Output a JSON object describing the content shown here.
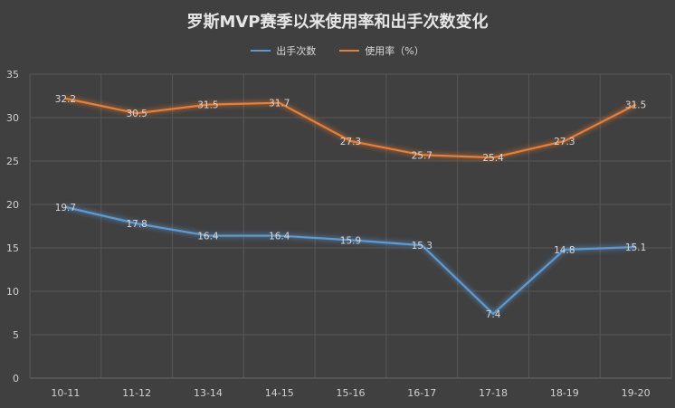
{
  "chart_data": {
    "type": "line",
    "title": "罗斯MVP赛季以来使用率和出手次数变化",
    "categories": [
      "10-11",
      "11-12",
      "13-14",
      "14-15",
      "15-16",
      "16-17",
      "17-18",
      "18-19",
      "19-20"
    ],
    "series": [
      {
        "name": "出手次数",
        "values": [
          19.7,
          17.8,
          16.4,
          16.4,
          15.9,
          15.3,
          7.4,
          14.8,
          15.1
        ],
        "color": "#5b9bd5"
      },
      {
        "name": "使用率（%）",
        "values": [
          32.2,
          30.5,
          31.5,
          31.7,
          27.3,
          25.7,
          25.4,
          27.3,
          31.5
        ],
        "color": "#ed7d31"
      }
    ],
    "ylim": [
      0,
      35
    ],
    "yticks": [
      0,
      5,
      10,
      15,
      20,
      25,
      30,
      35
    ],
    "grid": true,
    "legend_position": "top"
  }
}
